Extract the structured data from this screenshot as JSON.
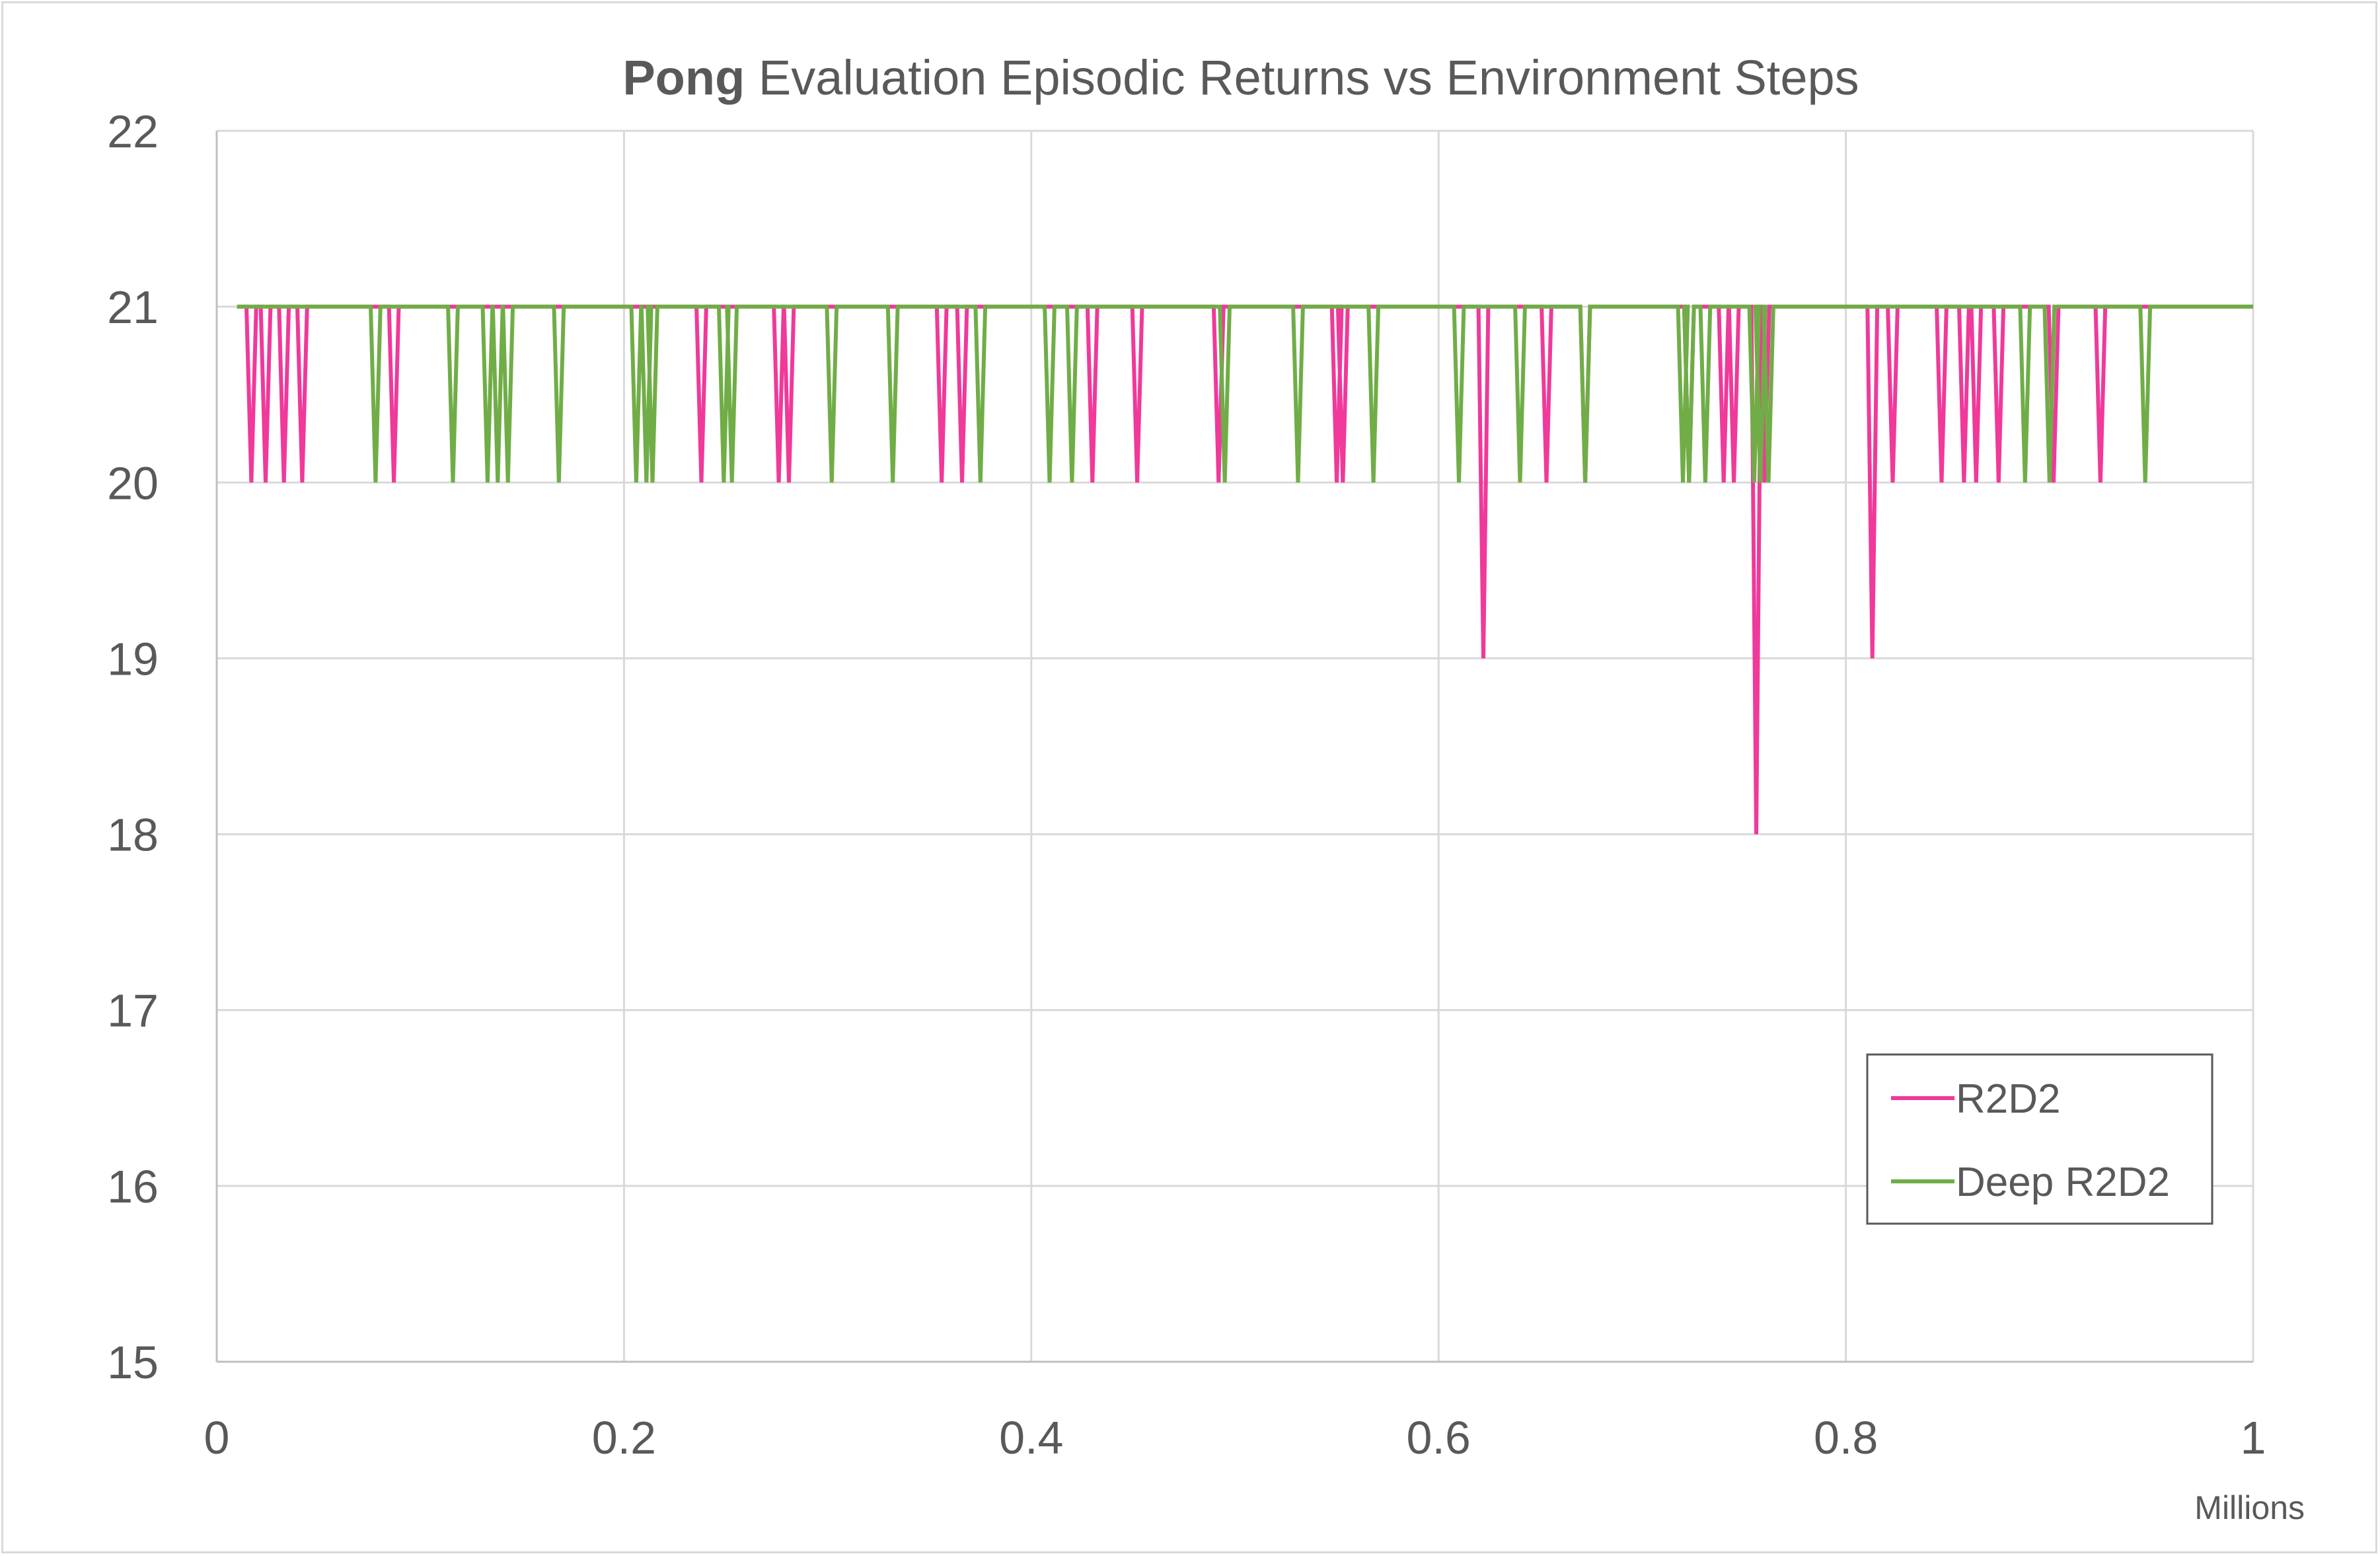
{
  "chart_data": {
    "type": "line",
    "title_bold": "Pong",
    "title_rest": " Evaluation Episodic Returns vs Environment Steps",
    "xlabel": "",
    "ylabel": "",
    "x_unit_label": "Millions",
    "xlim": [
      0,
      1
    ],
    "ylim": [
      15,
      22
    ],
    "x_ticks": [
      0,
      0.2,
      0.4,
      0.6,
      0.8,
      1
    ],
    "x_tick_labels": [
      "0",
      "0.2",
      "0.4",
      "0.6",
      "0.8",
      "1"
    ],
    "y_ticks": [
      15,
      16,
      17,
      18,
      19,
      20,
      21,
      22
    ],
    "y_tick_labels": [
      "15",
      "16",
      "17",
      "18",
      "19",
      "20",
      "21",
      "22"
    ],
    "grid": true,
    "legend_position": "bottom-right",
    "baseline": 21,
    "series": [
      {
        "name": "R2D2",
        "color": "#f0399a",
        "dips": [
          [
            0.017,
            20
          ],
          [
            0.024,
            20
          ],
          [
            0.033,
            20
          ],
          [
            0.042,
            20
          ],
          [
            0.087,
            20
          ],
          [
            0.238,
            20
          ],
          [
            0.276,
            20
          ],
          [
            0.281,
            20
          ],
          [
            0.356,
            20
          ],
          [
            0.366,
            20
          ],
          [
            0.43,
            20
          ],
          [
            0.452,
            20
          ],
          [
            0.492,
            20
          ],
          [
            0.55,
            20
          ],
          [
            0.553,
            20
          ],
          [
            0.622,
            19
          ],
          [
            0.653,
            20
          ],
          [
            0.672,
            20
          ],
          [
            0.723,
            20
          ],
          [
            0.74,
            20
          ],
          [
            0.745,
            20
          ],
          [
            0.756,
            18
          ],
          [
            0.76,
            20
          ],
          [
            0.813,
            19
          ],
          [
            0.823,
            20
          ],
          [
            0.847,
            20
          ],
          [
            0.858,
            20
          ],
          [
            0.864,
            20
          ],
          [
            0.875,
            20
          ],
          [
            0.902,
            20
          ],
          [
            0.925,
            20
          ]
        ]
      },
      {
        "name": "Deep R2D2",
        "color": "#70ad47",
        "dips": [
          [
            0.078,
            20
          ],
          [
            0.116,
            20
          ],
          [
            0.133,
            20
          ],
          [
            0.138,
            20
          ],
          [
            0.143,
            20
          ],
          [
            0.168,
            20
          ],
          [
            0.206,
            20
          ],
          [
            0.211,
            20
          ],
          [
            0.214,
            20
          ],
          [
            0.249,
            20
          ],
          [
            0.253,
            20
          ],
          [
            0.302,
            20
          ],
          [
            0.332,
            20
          ],
          [
            0.375,
            20
          ],
          [
            0.409,
            20
          ],
          [
            0.42,
            20
          ],
          [
            0.495,
            20
          ],
          [
            0.531,
            20
          ],
          [
            0.568,
            20
          ],
          [
            0.61,
            20
          ],
          [
            0.64,
            20
          ],
          [
            0.672,
            20
          ],
          [
            0.72,
            20
          ],
          [
            0.723,
            20
          ],
          [
            0.731,
            20
          ],
          [
            0.755,
            20
          ],
          [
            0.758,
            20
          ],
          [
            0.762,
            20
          ],
          [
            0.888,
            20
          ],
          [
            0.9,
            20
          ],
          [
            0.947,
            20
          ]
        ]
      }
    ]
  }
}
